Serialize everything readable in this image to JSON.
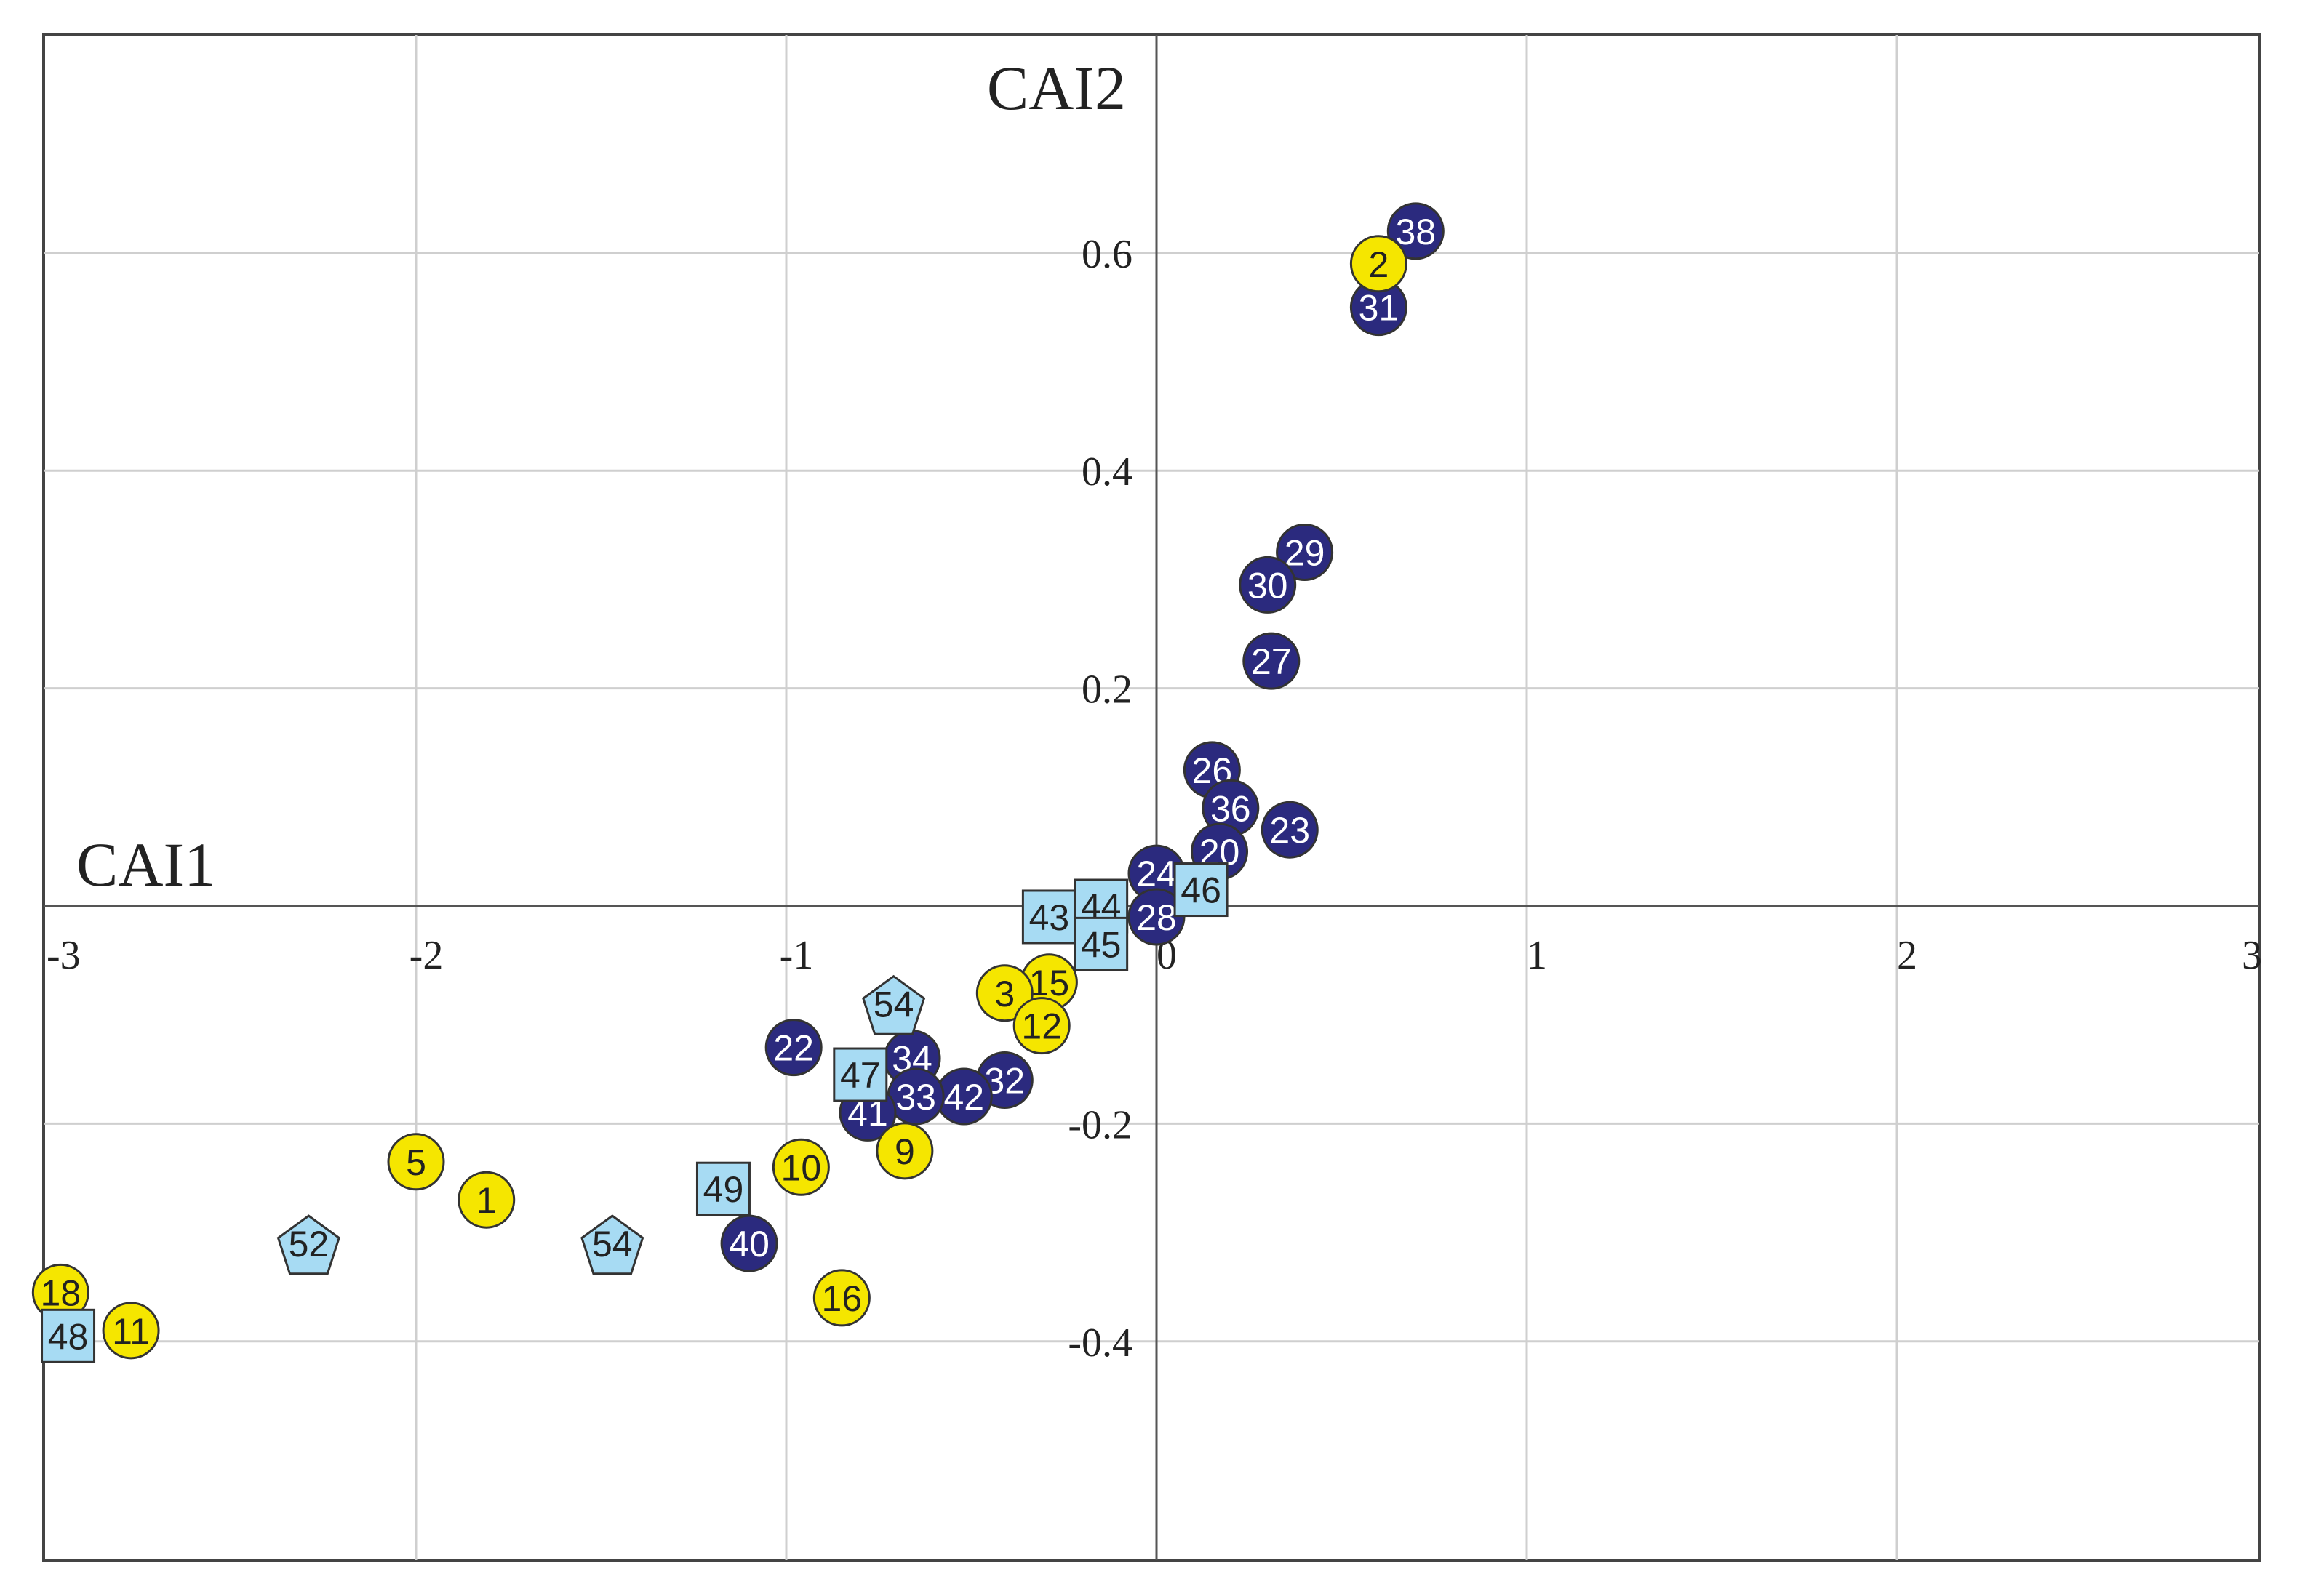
{
  "chart_data": {
    "type": "scatter",
    "xlabel": "CAI1",
    "ylabel": "CAI2",
    "xlim": [
      -3,
      3
    ],
    "ylim": [
      -0.6,
      0.8
    ],
    "grid": true,
    "x_ticks": [
      "-3",
      "-2",
      "-1",
      "0",
      "1",
      "2",
      "3"
    ],
    "y_ticks": [
      "0.6",
      "0.4",
      "0.2",
      "-0.2",
      "-0.4"
    ],
    "series": [
      {
        "marker": "circle",
        "color": "#2b2a7e",
        "label_color": "#ffffff",
        "points": [
          {
            "label": "38",
            "x": 0.7,
            "y": 0.62
          },
          {
            "label": "31",
            "x": 0.6,
            "y": 0.55
          },
          {
            "label": "29",
            "x": 0.4,
            "y": 0.325
          },
          {
            "label": "30",
            "x": 0.3,
            "y": 0.295
          },
          {
            "label": "27",
            "x": 0.31,
            "y": 0.225
          },
          {
            "label": "26",
            "x": 0.15,
            "y": 0.125
          },
          {
            "label": "36",
            "x": 0.2,
            "y": 0.09
          },
          {
            "label": "23",
            "x": 0.36,
            "y": 0.07
          },
          {
            "label": "20",
            "x": 0.17,
            "y": 0.05
          },
          {
            "label": "24",
            "x": 0.0,
            "y": 0.03
          },
          {
            "label": "28",
            "x": 0.0,
            "y": -0.01
          },
          {
            "label": "34",
            "x": -0.66,
            "y": -0.14
          },
          {
            "label": "32",
            "x": -0.41,
            "y": -0.16
          },
          {
            "label": "42",
            "x": -0.52,
            "y": -0.175
          },
          {
            "label": "33",
            "x": -0.65,
            "y": -0.175
          },
          {
            "label": "41",
            "x": -0.78,
            "y": -0.19
          },
          {
            "label": "22",
            "x": -0.98,
            "y": -0.13
          },
          {
            "label": "40",
            "x": -1.1,
            "y": -0.31
          }
        ]
      },
      {
        "marker": "circle",
        "color": "#f5e600",
        "label_color": "#222222",
        "points": [
          {
            "label": "2",
            "x": 0.6,
            "y": 0.59
          },
          {
            "label": "15",
            "x": -0.29,
            "y": -0.07
          },
          {
            "label": "3",
            "x": -0.41,
            "y": -0.08
          },
          {
            "label": "12",
            "x": -0.31,
            "y": -0.11
          },
          {
            "label": "9",
            "x": -0.68,
            "y": -0.225
          },
          {
            "label": "10",
            "x": -0.96,
            "y": -0.24
          },
          {
            "label": "5",
            "x": -2.0,
            "y": -0.235
          },
          {
            "label": "1",
            "x": -1.81,
            "y": -0.27
          },
          {
            "label": "16",
            "x": -0.85,
            "y": -0.36
          },
          {
            "label": "18",
            "x": -2.96,
            "y": -0.355
          },
          {
            "label": "11",
            "x": -2.77,
            "y": -0.39
          }
        ]
      },
      {
        "marker": "square",
        "color": "#a7dbf3",
        "label_color": "#222222",
        "points": [
          {
            "label": "43",
            "x": -0.29,
            "y": -0.01
          },
          {
            "label": "44",
            "x": -0.15,
            "y": 0.0
          },
          {
            "label": "46",
            "x": 0.12,
            "y": 0.015
          },
          {
            "label": "45",
            "x": -0.15,
            "y": -0.035
          },
          {
            "label": "47",
            "x": -0.8,
            "y": -0.155
          },
          {
            "label": "49",
            "x": -1.17,
            "y": -0.26
          },
          {
            "label": "48",
            "x": -2.94,
            "y": -0.395
          }
        ]
      },
      {
        "marker": "pentagon",
        "color": "#a7dbf3",
        "label_color": "#222222",
        "points": [
          {
            "label": "54",
            "x": -0.71,
            "y": -0.09
          },
          {
            "label": "54",
            "x": -1.47,
            "y": -0.31
          },
          {
            "label": "52",
            "x": -2.29,
            "y": -0.31
          }
        ]
      }
    ]
  }
}
